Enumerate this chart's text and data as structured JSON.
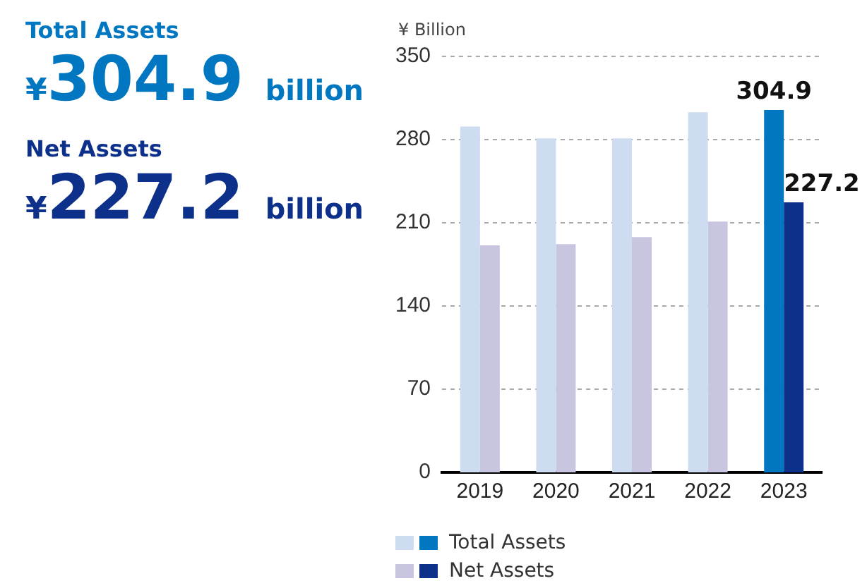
{
  "chart_data": [
    {
      "type": "other",
      "annotations": [
        "Total Assets",
        "¥304.9 billion",
        "Net Assets",
        "¥227.2 billion"
      ]
    },
    {
      "type": "bar",
      "ylabel": "¥ Billion",
      "categories": [
        "2019",
        "2020",
        "2021",
        "2022",
        "2023"
      ],
      "series": [
        {
          "name": "Total Assets",
          "colors": [
            "#cddcf0",
            "#cddcf0",
            "#cddcf0",
            "#cddcf0",
            "#0077c0"
          ],
          "values": [
            291,
            281,
            281,
            303,
            304.9
          ],
          "value_labels": [
            null,
            null,
            null,
            null,
            "304.9"
          ]
        },
        {
          "name": "Net Assets",
          "colors": [
            "#c8c5e0",
            "#c8c5e0",
            "#c8c5e0",
            "#c8c5e0",
            "#0d318a"
          ],
          "values": [
            191,
            192,
            198,
            211,
            227.2
          ],
          "value_labels": [
            null,
            null,
            null,
            null,
            "227.2"
          ]
        }
      ],
      "ylim": [
        0,
        350
      ],
      "yticks": [
        0,
        70,
        140,
        210,
        280,
        350
      ],
      "grid": "y",
      "legend": "bottom left"
    }
  ]
}
